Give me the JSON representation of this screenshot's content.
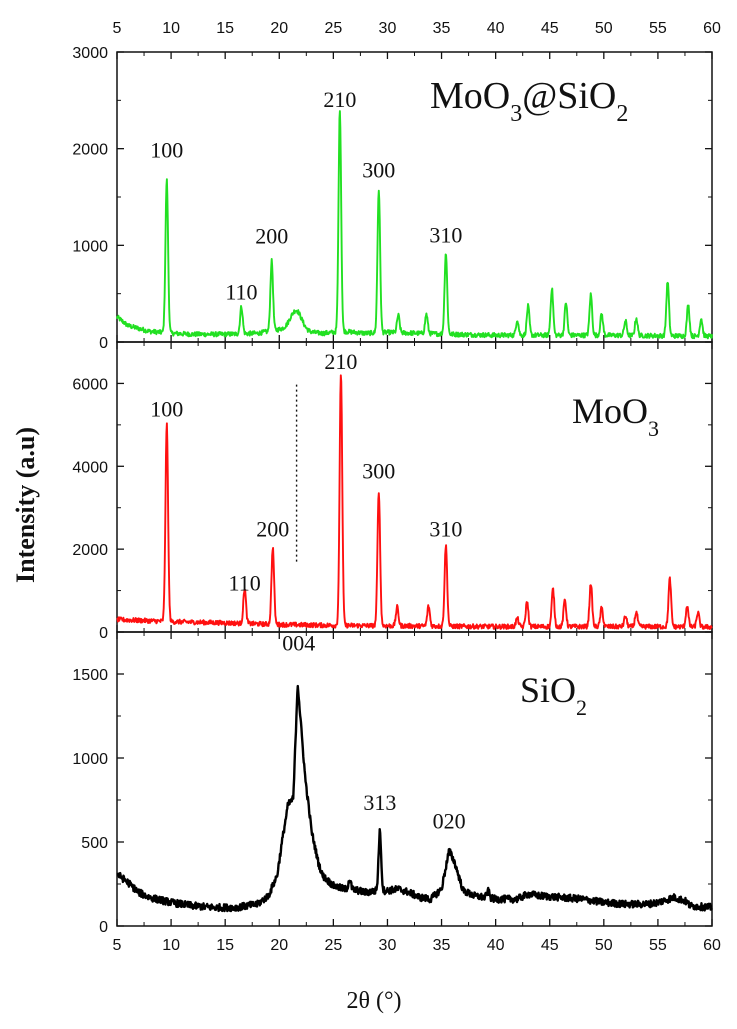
{
  "figure": {
    "xlabel": "2θ (°)",
    "ylabel": "Intensity (a.u)",
    "top_ticks": [
      "5",
      "10",
      "15",
      "20",
      "25",
      "30",
      "35",
      "40",
      "45",
      "50",
      "55",
      "60"
    ]
  },
  "chart_data": [
    {
      "type": "line",
      "name": "MoO3@SiO2",
      "formula": {
        "base": "MoO",
        "sub1": "3",
        "mid": "@SiO",
        "sub2": "2"
      },
      "color": "#22e022",
      "xlim": [
        5,
        60
      ],
      "ylim": [
        0,
        3000
      ],
      "yticks": [
        0,
        1000,
        2000,
        3000
      ],
      "baseline": [
        [
          5,
          260
        ],
        [
          6,
          170
        ],
        [
          8,
          110
        ],
        [
          10,
          90
        ],
        [
          12,
          80
        ],
        [
          15,
          80
        ],
        [
          18,
          90
        ],
        [
          20,
          130
        ],
        [
          21,
          150
        ],
        [
          22,
          110
        ],
        [
          24,
          90
        ],
        [
          26,
          110
        ],
        [
          28,
          90
        ],
        [
          30,
          100
        ],
        [
          33,
          90
        ],
        [
          36,
          80
        ],
        [
          40,
          70
        ],
        [
          45,
          70
        ],
        [
          50,
          70
        ],
        [
          55,
          65
        ],
        [
          60,
          60
        ]
      ],
      "peaks": [
        {
          "x": 9.6,
          "y": 1580,
          "w": 0.12
        },
        {
          "x": 16.5,
          "y": 280,
          "w": 0.12
        },
        {
          "x": 19.3,
          "y": 720,
          "w": 0.12
        },
        {
          "x": 21.6,
          "y": 200,
          "w": 0.5
        },
        {
          "x": 25.6,
          "y": 2300,
          "w": 0.12
        },
        {
          "x": 29.2,
          "y": 1480,
          "w": 0.12
        },
        {
          "x": 31.0,
          "y": 180,
          "w": 0.12
        },
        {
          "x": 33.6,
          "y": 200,
          "w": 0.12
        },
        {
          "x": 35.4,
          "y": 840,
          "w": 0.12
        },
        {
          "x": 42.0,
          "y": 160,
          "w": 0.12
        },
        {
          "x": 43.0,
          "y": 300,
          "w": 0.12
        },
        {
          "x": 45.2,
          "y": 480,
          "w": 0.12
        },
        {
          "x": 46.5,
          "y": 340,
          "w": 0.12
        },
        {
          "x": 48.8,
          "y": 420,
          "w": 0.12
        },
        {
          "x": 49.8,
          "y": 220,
          "w": 0.12
        },
        {
          "x": 52.0,
          "y": 150,
          "w": 0.12
        },
        {
          "x": 53.0,
          "y": 180,
          "w": 0.12
        },
        {
          "x": 55.9,
          "y": 560,
          "w": 0.12
        },
        {
          "x": 57.8,
          "y": 320,
          "w": 0.12
        },
        {
          "x": 59.0,
          "y": 180,
          "w": 0.12
        }
      ],
      "peak_labels": [
        {
          "text": "100",
          "x": 9.6,
          "y": 1910
        },
        {
          "text": "110",
          "x": 16.5,
          "y": 440
        },
        {
          "text": "200",
          "x": 19.3,
          "y": 1020
        },
        {
          "text": "210",
          "x": 25.6,
          "y": 2430
        },
        {
          "text": "300",
          "x": 29.2,
          "y": 1700
        },
        {
          "text": "310",
          "x": 35.4,
          "y": 1030
        }
      ]
    },
    {
      "type": "line",
      "name": "MoO3",
      "formula": {
        "base": "MoO",
        "sub1": "3",
        "mid": "",
        "sub2": ""
      },
      "color": "#ff1010",
      "xlim": [
        5,
        60
      ],
      "ylim": [
        0,
        7000
      ],
      "yticks": [
        0,
        2000,
        4000,
        6000
      ],
      "baseline": [
        [
          5,
          300
        ],
        [
          10,
          250
        ],
        [
          15,
          220
        ],
        [
          20,
          180
        ],
        [
          25,
          160
        ],
        [
          30,
          150
        ],
        [
          35,
          140
        ],
        [
          40,
          130
        ],
        [
          45,
          130
        ],
        [
          50,
          130
        ],
        [
          55,
          130
        ],
        [
          60,
          120
        ]
      ],
      "peaks": [
        {
          "x": 9.6,
          "y": 4750,
          "w": 0.12
        },
        {
          "x": 16.8,
          "y": 850,
          "w": 0.12
        },
        {
          "x": 19.4,
          "y": 1850,
          "w": 0.12
        },
        {
          "x": 25.7,
          "y": 6100,
          "w": 0.12
        },
        {
          "x": 29.2,
          "y": 3250,
          "w": 0.12
        },
        {
          "x": 30.9,
          "y": 450,
          "w": 0.12
        },
        {
          "x": 33.8,
          "y": 480,
          "w": 0.12
        },
        {
          "x": 35.4,
          "y": 1950,
          "w": 0.12
        },
        {
          "x": 42.0,
          "y": 200,
          "w": 0.12
        },
        {
          "x": 42.9,
          "y": 600,
          "w": 0.12
        },
        {
          "x": 45.3,
          "y": 900,
          "w": 0.12
        },
        {
          "x": 46.4,
          "y": 650,
          "w": 0.12
        },
        {
          "x": 48.8,
          "y": 1050,
          "w": 0.12
        },
        {
          "x": 49.8,
          "y": 450,
          "w": 0.12
        },
        {
          "x": 52.0,
          "y": 250,
          "w": 0.12
        },
        {
          "x": 53.0,
          "y": 350,
          "w": 0.12
        },
        {
          "x": 56.1,
          "y": 1150,
          "w": 0.12
        },
        {
          "x": 57.7,
          "y": 500,
          "w": 0.12
        },
        {
          "x": 58.7,
          "y": 350,
          "w": 0.12
        }
      ],
      "peak_labels": [
        {
          "text": "100",
          "x": 9.6,
          "y": 5200
        },
        {
          "text": "110",
          "x": 16.8,
          "y": 1000
        },
        {
          "text": "200",
          "x": 19.4,
          "y": 2300
        },
        {
          "text": "210",
          "x": 25.7,
          "y": 6350
        },
        {
          "text": "300",
          "x": 29.2,
          "y": 3700
        },
        {
          "text": "310",
          "x": 35.4,
          "y": 2300
        }
      ],
      "dotted_line": {
        "x": 21.6,
        "y_from": 1700,
        "y_to": 6000
      }
    },
    {
      "type": "line",
      "name": "SiO2",
      "formula": {
        "base": "SiO",
        "sub1": "2",
        "mid": "",
        "sub2": ""
      },
      "color": "#000000",
      "xlim": [
        5,
        60
      ],
      "ylim": [
        0,
        1750
      ],
      "yticks": [
        0,
        500,
        1000,
        1500
      ],
      "baseline": [
        [
          5,
          310
        ],
        [
          6,
          260
        ],
        [
          7,
          200
        ],
        [
          8,
          170
        ],
        [
          10,
          140
        ],
        [
          12,
          120
        ],
        [
          14,
          110
        ],
        [
          16,
          110
        ],
        [
          18,
          130
        ],
        [
          19,
          180
        ],
        [
          19.8,
          300
        ],
        [
          20.3,
          520
        ],
        [
          20.8,
          720
        ],
        [
          21.3,
          760
        ],
        [
          21.7,
          1450
        ],
        [
          22.0,
          1200
        ],
        [
          22.4,
          880
        ],
        [
          23,
          560
        ],
        [
          23.6,
          380
        ],
        [
          24,
          300
        ],
        [
          25,
          240
        ],
        [
          26,
          220
        ],
        [
          27,
          215
        ],
        [
          28,
          200
        ],
        [
          29,
          210
        ],
        [
          30,
          210
        ],
        [
          31,
          220
        ],
        [
          32,
          200
        ],
        [
          33,
          170
        ],
        [
          34,
          160
        ],
        [
          35,
          220
        ],
        [
          35.7,
          450
        ],
        [
          36.2,
          380
        ],
        [
          37,
          210
        ],
        [
          38,
          180
        ],
        [
          40,
          160
        ],
        [
          42,
          160
        ],
        [
          43,
          190
        ],
        [
          44,
          180
        ],
        [
          46,
          170
        ],
        [
          48,
          160
        ],
        [
          50,
          140
        ],
        [
          52,
          130
        ],
        [
          54,
          130
        ],
        [
          55,
          140
        ],
        [
          56.5,
          170
        ],
        [
          57.5,
          150
        ],
        [
          58,
          120
        ],
        [
          60,
          110
        ]
      ],
      "peaks": [
        {
          "x": 26.5,
          "y": 60,
          "w": 0.12
        },
        {
          "x": 29.3,
          "y": 350,
          "w": 0.12
        },
        {
          "x": 39.3,
          "y": 40,
          "w": 0.12
        }
      ],
      "peak_labels": [
        {
          "text": "004",
          "x": 21.8,
          "y": 1640
        },
        {
          "text": "313",
          "x": 29.3,
          "y": 690
        },
        {
          "text": "020",
          "x": 35.7,
          "y": 580
        }
      ]
    }
  ]
}
